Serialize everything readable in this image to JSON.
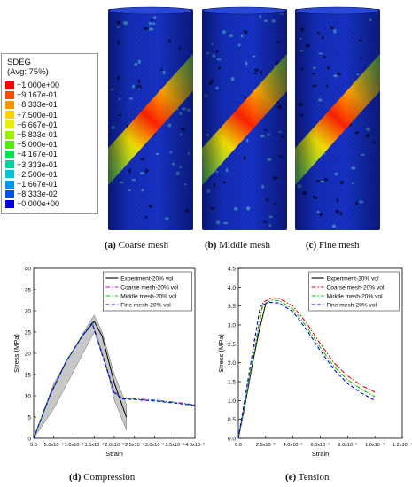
{
  "contour_legend": {
    "title": "SDEG",
    "subtitle": "(Avg: 75%)",
    "entries": [
      {
        "value": "+1.000e+00",
        "color": "#ff0000"
      },
      {
        "value": "+9.167e-01",
        "color": "#ff4a00"
      },
      {
        "value": "+8.333e-01",
        "color": "#ff9600"
      },
      {
        "value": "+7.500e-01",
        "color": "#ffd200"
      },
      {
        "value": "+6.667e-01",
        "color": "#e6f000"
      },
      {
        "value": "+5.833e-01",
        "color": "#9bf000"
      },
      {
        "value": "+5.000e-01",
        "color": "#4ef000"
      },
      {
        "value": "+4.167e-01",
        "color": "#00e24e"
      },
      {
        "value": "+3.333e-01",
        "color": "#00d29b"
      },
      {
        "value": "+2.500e-01",
        "color": "#00c3d8"
      },
      {
        "value": "+1.667e-01",
        "color": "#0096f0"
      },
      {
        "value": "+8.333e-02",
        "color": "#0050f0"
      },
      {
        "value": "+0.000e+00",
        "color": "#0000e8"
      }
    ]
  },
  "subfigures": {
    "a": {
      "label": "(a)",
      "text": "Coarse mesh"
    },
    "b": {
      "label": "(b)",
      "text": "Middle mesh"
    },
    "c": {
      "label": "(c)",
      "text": "Fine mesh"
    },
    "d": {
      "label": "(d)",
      "text": "Compression"
    },
    "e": {
      "label": "(e)",
      "text": "Tension"
    }
  },
  "colors": {
    "experiment": "#000000",
    "coarse": "#cc00cc",
    "middle": "#00cc00",
    "fine": "#0000ff",
    "tension_coarse": "#ff0000",
    "band": "#b0b0b0"
  },
  "chart_data": [
    {
      "id": "compression",
      "type": "line",
      "xlabel": "Strain",
      "ylabel": "Stress (MPa)",
      "xlim": [
        0,
        0.004
      ],
      "ylim": [
        0,
        40
      ],
      "xticks": [
        0,
        0.0005,
        0.001,
        0.0015,
        0.002,
        0.0025,
        0.003,
        0.0035,
        0.004
      ],
      "xtick_labels": [
        "0.0",
        "5.0x10⁻⁴",
        "1.0x10⁻³",
        "1.5x10⁻³",
        "2.0x10⁻³",
        "2.5x10⁻³",
        "3.0x10⁻³",
        "3.5x10⁻³",
        "4.0x10⁻³"
      ],
      "yticks": [
        0,
        5,
        10,
        15,
        20,
        25,
        30,
        35,
        40
      ],
      "ytick_labels": [
        "0",
        "5",
        "10",
        "15",
        "20",
        "25",
        "30",
        "35",
        "40"
      ],
      "legend_position": "top-right",
      "band": {
        "upper": [
          [
            0,
            0
          ],
          [
            0.0005,
            13
          ],
          [
            0.001,
            21
          ],
          [
            0.0014,
            27.5
          ],
          [
            0.0015,
            29
          ],
          [
            0.0017,
            25
          ],
          [
            0.002,
            15
          ],
          [
            0.0023,
            8
          ]
        ],
        "lower": [
          [
            0.0023,
            2
          ],
          [
            0.002,
            9
          ],
          [
            0.0018,
            17
          ],
          [
            0.0016,
            23
          ],
          [
            0.0015,
            25
          ],
          [
            0.001,
            16
          ],
          [
            0.0005,
            7
          ],
          [
            0,
            0
          ]
        ]
      },
      "series": [
        {
          "name": "Experiment-20% vol",
          "style": "solid",
          "points": [
            [
              0,
              0
            ],
            [
              0.0004,
              10
            ],
            [
              0.0008,
              18
            ],
            [
              0.0012,
              24
            ],
            [
              0.0015,
              27.5
            ],
            [
              0.0017,
              24
            ],
            [
              0.002,
              13
            ],
            [
              0.0023,
              5
            ]
          ]
        },
        {
          "name": "Coarse mesh-20% vol",
          "style": "dashdot",
          "points": [
            [
              0,
              0
            ],
            [
              0.0004,
              10
            ],
            [
              0.0008,
              18
            ],
            [
              0.0012,
              24
            ],
            [
              0.00145,
              27.3
            ],
            [
              0.0017,
              20
            ],
            [
              0.002,
              11
            ],
            [
              0.0022,
              9.5
            ],
            [
              0.003,
              9
            ],
            [
              0.0035,
              8.5
            ],
            [
              0.004,
              7.9
            ]
          ]
        },
        {
          "name": "Middle mesh-20% vol",
          "style": "dashdot",
          "points": [
            [
              0,
              0
            ],
            [
              0.0004,
              10
            ],
            [
              0.0008,
              18
            ],
            [
              0.0012,
              24
            ],
            [
              0.00145,
              27.2
            ],
            [
              0.0017,
              19.8
            ],
            [
              0.002,
              10.8
            ],
            [
              0.0022,
              9.4
            ],
            [
              0.003,
              8.9
            ],
            [
              0.0035,
              8.4
            ],
            [
              0.004,
              7.8
            ]
          ]
        },
        {
          "name": "Fine mesh-20% vol",
          "style": "dashed",
          "points": [
            [
              0,
              0
            ],
            [
              0.0004,
              10
            ],
            [
              0.0008,
              18
            ],
            [
              0.0012,
              24
            ],
            [
              0.00145,
              27.1
            ],
            [
              0.0017,
              19.6
            ],
            [
              0.002,
              10.7
            ],
            [
              0.0022,
              9.3
            ],
            [
              0.003,
              8.8
            ],
            [
              0.0035,
              8.3
            ],
            [
              0.004,
              7.7
            ]
          ]
        }
      ]
    },
    {
      "id": "tension",
      "type": "line",
      "xlabel": "Strain",
      "ylabel": "Stress (MPa)",
      "xlim": [
        0,
        0.00012
      ],
      "ylim": [
        0,
        4.5
      ],
      "xticks": [
        0,
        2e-05,
        4e-05,
        6e-05,
        8e-05,
        0.0001,
        0.00012
      ],
      "xtick_labels": [
        "0.0",
        "2.0x10⁻⁵",
        "4.0x10⁻⁵",
        "6.0x10⁻⁵",
        "8.0x10⁻⁵",
        "1.0x10⁻⁴",
        "1.2x10⁻⁴"
      ],
      "yticks": [
        0,
        0.5,
        1,
        1.5,
        2,
        2.5,
        3,
        3.5,
        4,
        4.5
      ],
      "ytick_labels": [
        "0.0",
        "0.5",
        "1.0",
        "1.5",
        "2.0",
        "2.5",
        "3.0",
        "3.5",
        "4.0",
        "4.5"
      ],
      "legend_position": "top-right",
      "series": [
        {
          "name": "Experiment-20% vol",
          "style": "solid",
          "points": [
            [
              0,
              0
            ],
            [
              5e-06,
              0.9
            ],
            [
              1e-05,
              1.9
            ],
            [
              1.5e-05,
              2.8
            ],
            [
              2e-05,
              3.55
            ]
          ]
        },
        {
          "name": "Coarse mesh-20% vol",
          "style": "dashdot",
          "points": [
            [
              0,
              0
            ],
            [
              1.8e-05,
              3.6
            ],
            [
              2.5e-05,
              3.72
            ],
            [
              3e-05,
              3.7
            ],
            [
              4e-05,
              3.5
            ],
            [
              5e-05,
              3.05
            ],
            [
              6e-05,
              2.5
            ],
            [
              7e-05,
              2.0
            ],
            [
              8e-05,
              1.65
            ],
            [
              9e-05,
              1.4
            ],
            [
              0.0001,
              1.22
            ]
          ]
        },
        {
          "name": "Middle mesh-20% vol",
          "style": "dashdot",
          "points": [
            [
              0,
              0
            ],
            [
              1.8e-05,
              3.55
            ],
            [
              2.5e-05,
              3.66
            ],
            [
              3e-05,
              3.64
            ],
            [
              4e-05,
              3.42
            ],
            [
              5e-05,
              2.95
            ],
            [
              6e-05,
              2.4
            ],
            [
              7e-05,
              1.9
            ],
            [
              8e-05,
              1.55
            ],
            [
              9e-05,
              1.3
            ],
            [
              0.0001,
              1.1
            ]
          ]
        },
        {
          "name": "Fine mesh-20% vol",
          "style": "dashed",
          "points": [
            [
              0,
              0
            ],
            [
              1.6e-05,
              3.5
            ],
            [
              2.2e-05,
              3.6
            ],
            [
              3e-05,
              3.58
            ],
            [
              4e-05,
              3.35
            ],
            [
              5e-05,
              2.87
            ],
            [
              6e-05,
              2.32
            ],
            [
              7e-05,
              1.82
            ],
            [
              8e-05,
              1.45
            ],
            [
              9e-05,
              1.2
            ],
            [
              0.0001,
              1.0
            ]
          ]
        }
      ]
    }
  ]
}
